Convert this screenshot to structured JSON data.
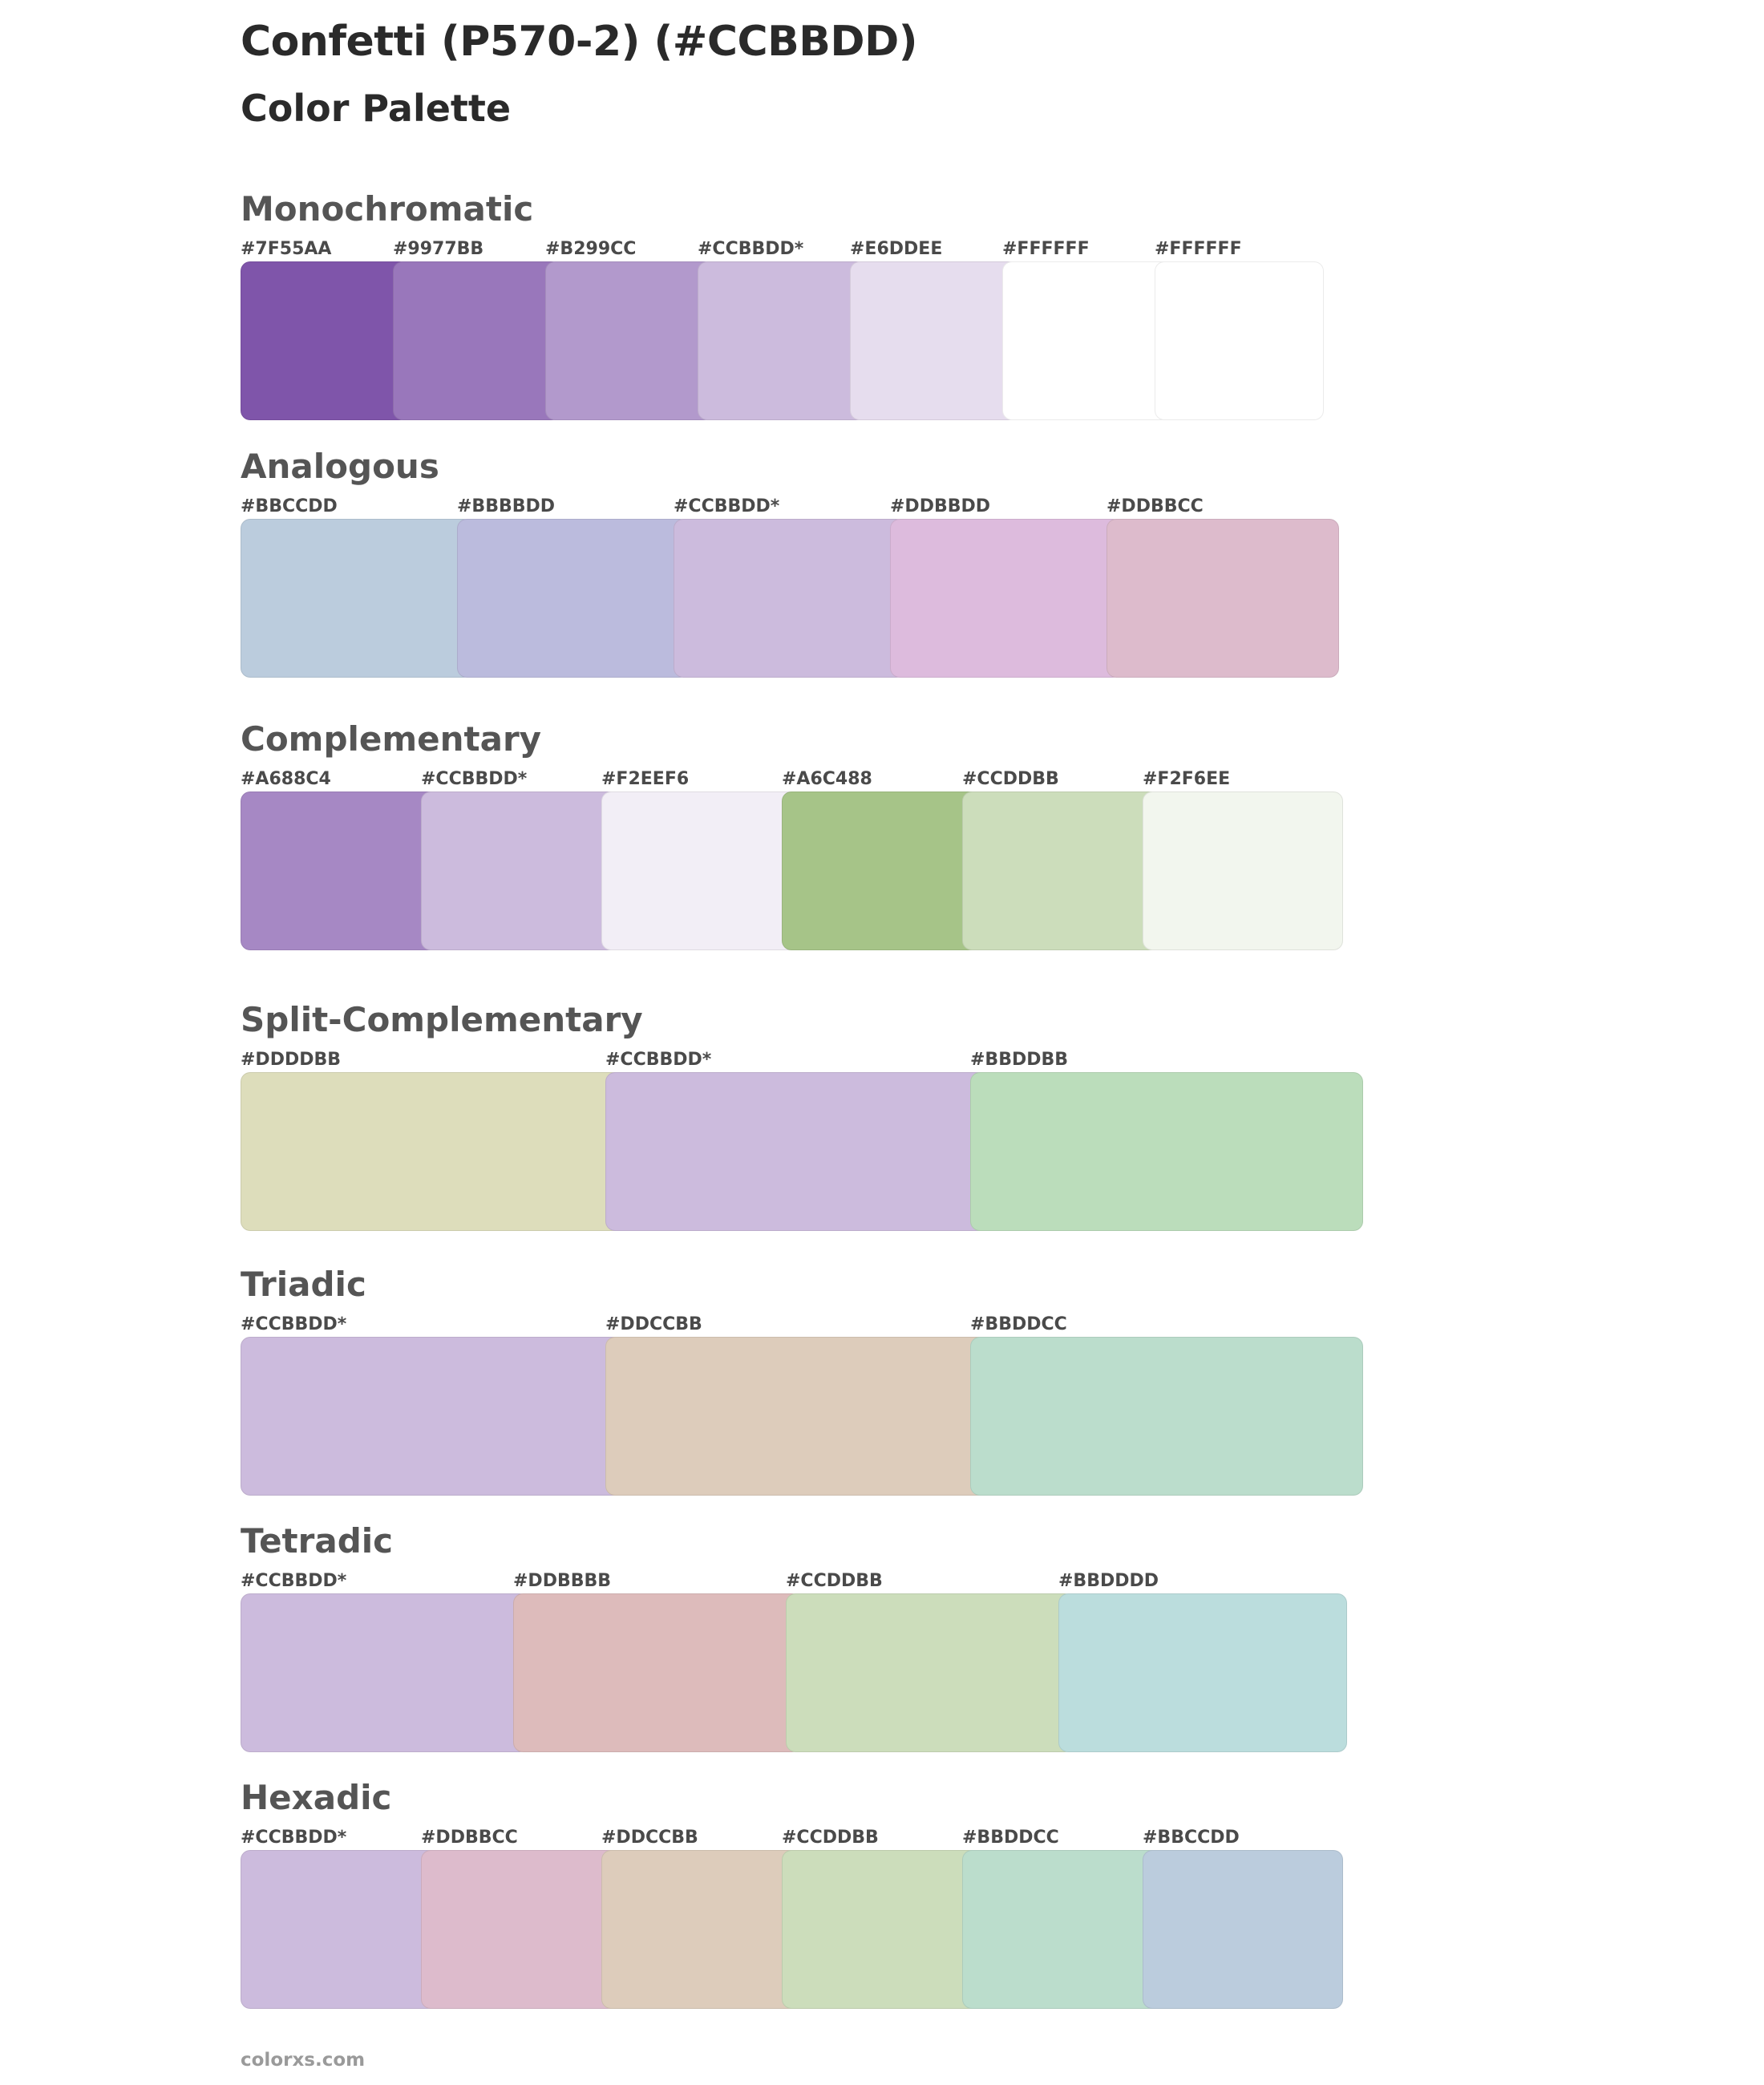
{
  "page": {
    "title": "Confetti (P570-2) (#CCBBDD)",
    "subtitle": "Color Palette",
    "footer": "colorxs.com"
  },
  "palettes": [
    {
      "name": "Monochromatic",
      "colors": [
        {
          "label": "#7F55AA",
          "hex": "#7F55AA"
        },
        {
          "label": "#9977BB",
          "hex": "#9977BB"
        },
        {
          "label": "#B299CC",
          "hex": "#B299CC"
        },
        {
          "label": "#CCBBDD*",
          "hex": "#CCBBDD"
        },
        {
          "label": "#E6DDEE",
          "hex": "#E6DDEE"
        },
        {
          "label": "#FFFFFF",
          "hex": "#FFFFFF"
        },
        {
          "label": "#FFFFFF",
          "hex": "#FFFFFF"
        }
      ]
    },
    {
      "name": "Analogous",
      "colors": [
        {
          "label": "#BBCCDD",
          "hex": "#BBCCDD"
        },
        {
          "label": "#BBBBDD",
          "hex": "#BBBBDD"
        },
        {
          "label": "#CCBBDD*",
          "hex": "#CCBBDD"
        },
        {
          "label": "#DDBBDD",
          "hex": "#DDBBDD"
        },
        {
          "label": "#DDBBCC",
          "hex": "#DDBBCC"
        }
      ]
    },
    {
      "name": "Complementary",
      "colors": [
        {
          "label": "#A688C4",
          "hex": "#A688C4"
        },
        {
          "label": "#CCBBDD*",
          "hex": "#CCBBDD"
        },
        {
          "label": "#F2EEF6",
          "hex": "#F2EEF6"
        },
        {
          "label": "#A6C488",
          "hex": "#A6C488"
        },
        {
          "label": "#CCDDBB",
          "hex": "#CCDDBB"
        },
        {
          "label": "#F2F6EE",
          "hex": "#F2F6EE"
        }
      ]
    },
    {
      "name": "Split-Complementary",
      "colors": [
        {
          "label": "#DDDDBB",
          "hex": "#DDDDBB"
        },
        {
          "label": "#CCBBDD*",
          "hex": "#CCBBDD"
        },
        {
          "label": "#BBDDBB",
          "hex": "#BBDDBB"
        }
      ]
    },
    {
      "name": "Triadic",
      "colors": [
        {
          "label": "#CCBBDD*",
          "hex": "#CCBBDD"
        },
        {
          "label": "#DDCCBB",
          "hex": "#DDCCBB"
        },
        {
          "label": "#BBDDCC",
          "hex": "#BBDDCC"
        }
      ]
    },
    {
      "name": "Tetradic",
      "colors": [
        {
          "label": "#CCBBDD*",
          "hex": "#CCBBDD"
        },
        {
          "label": "#DDBBBB",
          "hex": "#DDBBBB"
        },
        {
          "label": "#CCDDBB",
          "hex": "#CCDDBB"
        },
        {
          "label": "#BBDDDD",
          "hex": "#BBDDDD"
        }
      ]
    },
    {
      "name": "Hexadic",
      "colors": [
        {
          "label": "#CCBBDD*",
          "hex": "#CCBBDD"
        },
        {
          "label": "#DDBBCC",
          "hex": "#DDBBCC"
        },
        {
          "label": "#DDCCBB",
          "hex": "#DDCCBB"
        },
        {
          "label": "#CCDDBB",
          "hex": "#CCDDBB"
        },
        {
          "label": "#BBDDCC",
          "hex": "#BBDDCC"
        },
        {
          "label": "#BBCCDD",
          "hex": "#BBCCDD"
        }
      ]
    }
  ]
}
